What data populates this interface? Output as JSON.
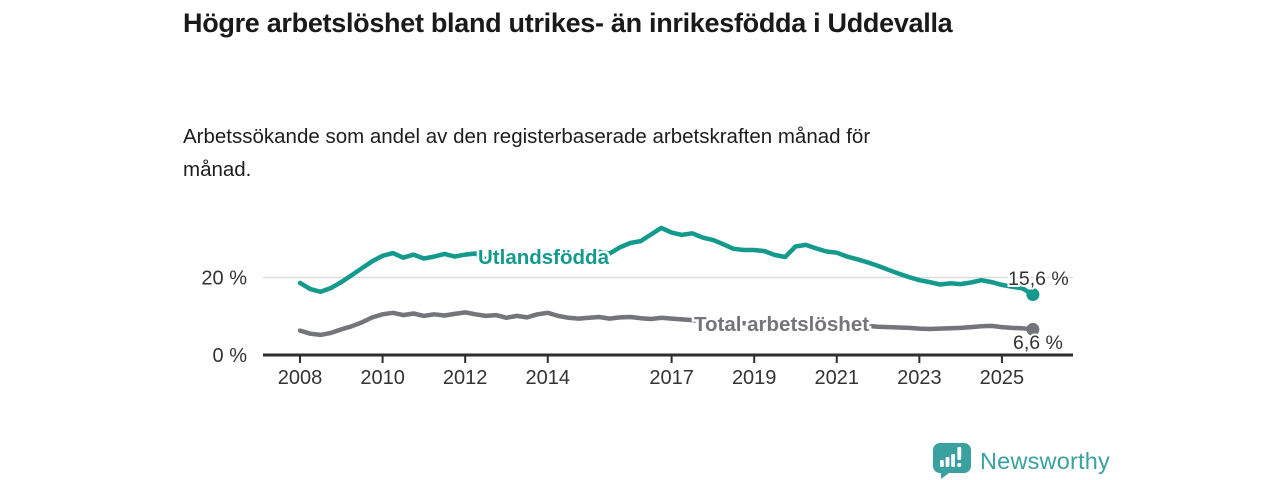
{
  "header": {
    "title": "Högre arbetslöshet bland utrikes- än inrikesfödda i Uddevalla",
    "subtitle": "Arbetssökande som andel av den registerbaserade arbetskraften månad för månad."
  },
  "footer": {
    "brand": "Newsworthy",
    "logo_icon": "speech-bubble-bar-chart-icon"
  },
  "colors": {
    "series_foreign_born": "#149a8d",
    "series_total": "#74747b",
    "axis": "#333333",
    "gridline": "#dcdcdc",
    "title_text": "#1a1a1a",
    "brand": "#3aa0a0"
  },
  "chart_data": {
    "type": "line",
    "title": "Högre arbetslöshet bland utrikes- än inrikesfödda i Uddevalla",
    "subtitle": "Arbetssökande som andel av den registerbaserade arbetskraften månad för månad.",
    "unit": "%",
    "xlabel": "",
    "ylabel": "",
    "ylim": [
      0,
      34.3
    ],
    "grid": "horizontal-20-only",
    "legend_position": "inline-labels",
    "grid_values": [
      20
    ],
    "y_ticks": [
      {
        "value": 0,
        "label": "0 %"
      },
      {
        "value": 20,
        "label": "20 %"
      }
    ],
    "x_ticks": [
      {
        "value": 2008,
        "label": "2008"
      },
      {
        "value": 2010,
        "label": "2010"
      },
      {
        "value": 2012,
        "label": "2012"
      },
      {
        "value": 2014,
        "label": "2014"
      },
      {
        "value": 2017,
        "label": "2017"
      },
      {
        "value": 2019,
        "label": "2019"
      },
      {
        "value": 2021,
        "label": "2021"
      },
      {
        "value": 2023,
        "label": "2023"
      },
      {
        "value": 2025,
        "label": "2025"
      }
    ],
    "x": [
      2008,
      2008.25,
      2008.5,
      2008.75,
      2009,
      2009.25,
      2009.5,
      2009.75,
      2010,
      2010.25,
      2010.5,
      2010.75,
      2011,
      2011.25,
      2011.5,
      2011.75,
      2012,
      2012.25,
      2012.5,
      2012.75,
      2013,
      2013.25,
      2013.5,
      2013.75,
      2014,
      2014.25,
      2014.5,
      2014.75,
      2015,
      2015.25,
      2015.5,
      2015.75,
      2016,
      2016.25,
      2016.5,
      2016.75,
      2017,
      2017.25,
      2017.5,
      2017.75,
      2018,
      2018.25,
      2018.5,
      2018.75,
      2019,
      2019.25,
      2019.5,
      2019.75,
      2020,
      2020.25,
      2020.5,
      2020.75,
      2021,
      2021.25,
      2021.5,
      2021.75,
      2022,
      2022.25,
      2022.5,
      2022.75,
      2023,
      2023.25,
      2023.5,
      2023.75,
      2024,
      2024.25,
      2024.5,
      2024.75,
      2025,
      2025.25,
      2025.5,
      2025.75
    ],
    "series": [
      {
        "name": "Utlandsfödda",
        "color": "#149a8d",
        "end_value": 15.6,
        "end_label": "15,6 %",
        "values": [
          18.6,
          17.0,
          16.3,
          17.3,
          18.8,
          20.6,
          22.4,
          24.2,
          25.6,
          26.3,
          25.1,
          25.9,
          24.9,
          25.4,
          26.1,
          25.4,
          25.9,
          26.2,
          24.7,
          25.3,
          25.8,
          25.1,
          25.0,
          26.0,
          25.6,
          25.2,
          25.7,
          26.1,
          26.3,
          26.6,
          26.2,
          27.8,
          28.9,
          29.4,
          31.1,
          32.8,
          31.6,
          31.0,
          31.4,
          30.3,
          29.7,
          28.6,
          27.4,
          27.1,
          27.1,
          26.8,
          25.8,
          25.3,
          28.0,
          28.4,
          27.5,
          26.7,
          26.4,
          25.4,
          24.7,
          23.9,
          23.0,
          22.0,
          21.0,
          20.1,
          19.3,
          18.8,
          18.2,
          18.5,
          18.3,
          18.7,
          19.3,
          18.8,
          18.1,
          17.6,
          17.2,
          15.6
        ]
      },
      {
        "name": "Total arbetslöshet",
        "color": "#74747b",
        "end_value": 6.6,
        "end_label": "6,6 %",
        "values": [
          6.3,
          5.5,
          5.2,
          5.7,
          6.6,
          7.4,
          8.4,
          9.7,
          10.5,
          10.9,
          10.3,
          10.7,
          10.1,
          10.5,
          10.2,
          10.6,
          11.0,
          10.5,
          10.1,
          10.3,
          9.6,
          10.1,
          9.7,
          10.5,
          10.9,
          10.1,
          9.6,
          9.4,
          9.6,
          9.8,
          9.4,
          9.7,
          9.8,
          9.5,
          9.3,
          9.6,
          9.4,
          9.2,
          9.0,
          8.8,
          8.6,
          8.5,
          8.4,
          8.2,
          8.0,
          7.9,
          7.8,
          8.0,
          8.3,
          8.6,
          8.5,
          8.3,
          8.1,
          7.9,
          7.7,
          7.5,
          7.3,
          7.2,
          7.1,
          7.0,
          6.8,
          6.7,
          6.8,
          6.9,
          7.0,
          7.2,
          7.4,
          7.5,
          7.2,
          7.0,
          6.9,
          6.6
        ]
      }
    ]
  }
}
